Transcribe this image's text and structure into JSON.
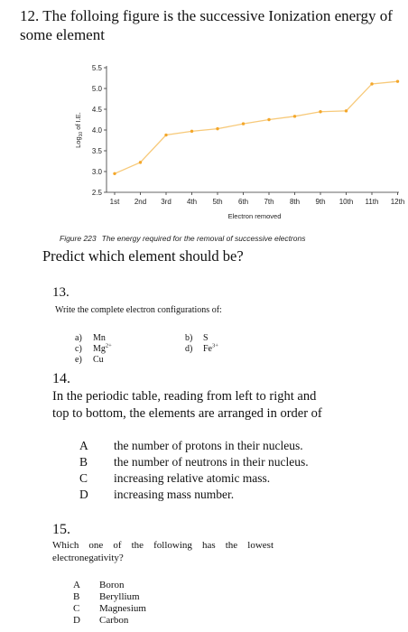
{
  "q12": {
    "title": "12.  The folloing figure is the successive Ionization energy of some element",
    "figure_label": "Figure 223",
    "figure_caption": "The energy required for the removal of successive electrons",
    "prompt": "Predict which element should be?"
  },
  "chart_data": {
    "type": "line",
    "categories": [
      "1st",
      "2nd",
      "3rd",
      "4th",
      "5th",
      "6th",
      "7th",
      "8th",
      "9th",
      "10th",
      "11th",
      "12th"
    ],
    "values": [
      2.95,
      3.22,
      3.88,
      3.97,
      4.03,
      4.15,
      4.25,
      4.33,
      4.44,
      4.46,
      5.11,
      5.17
    ],
    "yticks": [
      "2.5",
      "3.0",
      "3.5",
      "4.0",
      "4.5",
      "5.0",
      "5.5"
    ],
    "ylim": [
      2.5,
      5.5
    ],
    "xlabel": "Electron removed",
    "ylabel": "Log",
    "ylabel_sub": "10",
    "ylabel_tail": " of I.E.",
    "line_color": "#f7c979",
    "marker_color": "#f4a72a",
    "grid": false
  },
  "q13": {
    "number": "13.",
    "text": "Write the complete electron configurations of:",
    "options": [
      {
        "key": "a)",
        "value": "Mn"
      },
      {
        "key": "b)",
        "value": "S"
      },
      {
        "key": "c)",
        "value": "Mg",
        "sup": "2+"
      },
      {
        "key": "d)",
        "value": "Fe",
        "sup": "3+"
      },
      {
        "key": "e)",
        "value": "Cu"
      }
    ]
  },
  "q14": {
    "number": "14.",
    "text": "In the periodic table, reading from left to right and top to bottom, the elements are arranged in order of",
    "options": [
      {
        "key": "A",
        "value": "the number of protons in their nucleus."
      },
      {
        "key": "B",
        "value": "the number of neutrons in their nucleus."
      },
      {
        "key": "C",
        "value": "increasing relative atomic mass."
      },
      {
        "key": "D",
        "value": "increasing mass number."
      }
    ]
  },
  "q15": {
    "number": "15.",
    "text": "Which one of the following has the lowest electronegativity?",
    "options": [
      {
        "key": "A",
        "value": "Boron"
      },
      {
        "key": "B",
        "value": "Beryllium"
      },
      {
        "key": "C",
        "value": "Magnesium"
      },
      {
        "key": "D",
        "value": "Carbon"
      }
    ]
  }
}
